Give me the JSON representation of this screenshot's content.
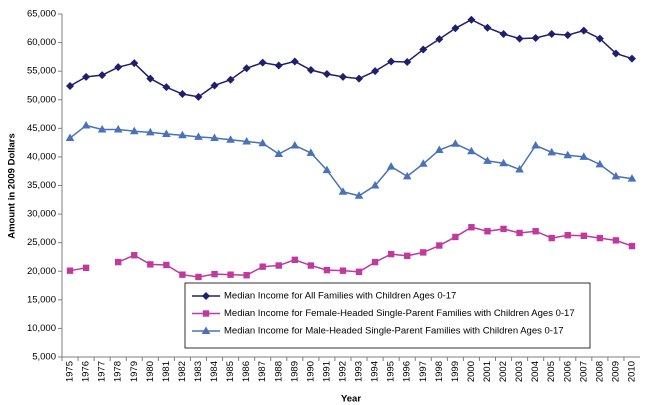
{
  "chart_data": {
    "type": "line",
    "x_label": "Year",
    "y_label": "Amount in 2009 Dollars",
    "categories": [
      "1975",
      "1976",
      "1977",
      "1978",
      "1979",
      "1980",
      "1981",
      "1982",
      "1983",
      "1984",
      "1985",
      "1986",
      "1987",
      "1988",
      "1989",
      "1990",
      "1991",
      "1992",
      "1993",
      "1994",
      "1995",
      "1996",
      "1997",
      "1998",
      "1999",
      "2000",
      "2001",
      "2002",
      "2003",
      "2004",
      "2005",
      "2006",
      "2007",
      "2008",
      "2009",
      "2010"
    ],
    "series": [
      {
        "name": "Median Income for All Families with Children Ages 0-17",
        "color": "#1f1f6e",
        "marker": "diamond",
        "values": [
          52400,
          54000,
          54300,
          55700,
          56400,
          53700,
          52200,
          51000,
          50500,
          52500,
          53500,
          55500,
          56500,
          56000,
          56700,
          55200,
          54500,
          54000,
          53700,
          55000,
          56700,
          56600,
          58800,
          60600,
          62500,
          64000,
          62600,
          61500,
          60700,
          60800,
          61500,
          61300,
          62100,
          60700,
          58100,
          57200
        ]
      },
      {
        "name": "Median Income for Female-Headed Single-Parent Families with Children Ages 0-17",
        "color": "#c0399e",
        "marker": "square",
        "values": [
          20100,
          20600,
          null,
          21600,
          22800,
          21200,
          21100,
          19400,
          19000,
          19500,
          19400,
          19300,
          20800,
          21000,
          22000,
          21000,
          20200,
          20100,
          19900,
          21600,
          23000,
          22700,
          23300,
          24500,
          26000,
          27700,
          27000,
          27400,
          26700,
          27000,
          25800,
          26300,
          26200,
          25800,
          25400,
          24400
        ]
      },
      {
        "name": "Median Income for Male-Headed Single-Parent Families with Children Ages 0-17",
        "color": "#4a72b8",
        "marker": "triangle",
        "values": [
          43300,
          45500,
          44800,
          44800,
          44500,
          44300,
          44000,
          43800,
          43500,
          43300,
          43000,
          42700,
          42400,
          40500,
          42000,
          40700,
          37700,
          33900,
          33200,
          35000,
          38300,
          36600,
          38800,
          41200,
          42300,
          41000,
          39300,
          38900,
          37800,
          42000,
          40800,
          40300,
          40000,
          38700,
          36600,
          36200
        ]
      }
    ],
    "ylim": [
      5000,
      65000
    ],
    "yticks": [
      {
        "value": 5000,
        "label": "5,000"
      },
      {
        "value": 10000,
        "label": "10,000"
      },
      {
        "value": 15000,
        "label": "15,000"
      },
      {
        "value": 20000,
        "label": "20,000"
      },
      {
        "value": 25000,
        "label": "25,000"
      },
      {
        "value": 30000,
        "label": "30,000"
      },
      {
        "value": 35000,
        "label": "35,000"
      },
      {
        "value": 40000,
        "label": "40,000"
      },
      {
        "value": 45000,
        "label": "45,000"
      },
      {
        "value": 50000,
        "label": "50,000"
      },
      {
        "value": 55000,
        "label": "55,000"
      },
      {
        "value": 60000,
        "label": "60,000"
      },
      {
        "value": 65000,
        "label": "65,000"
      }
    ],
    "grid": false
  }
}
